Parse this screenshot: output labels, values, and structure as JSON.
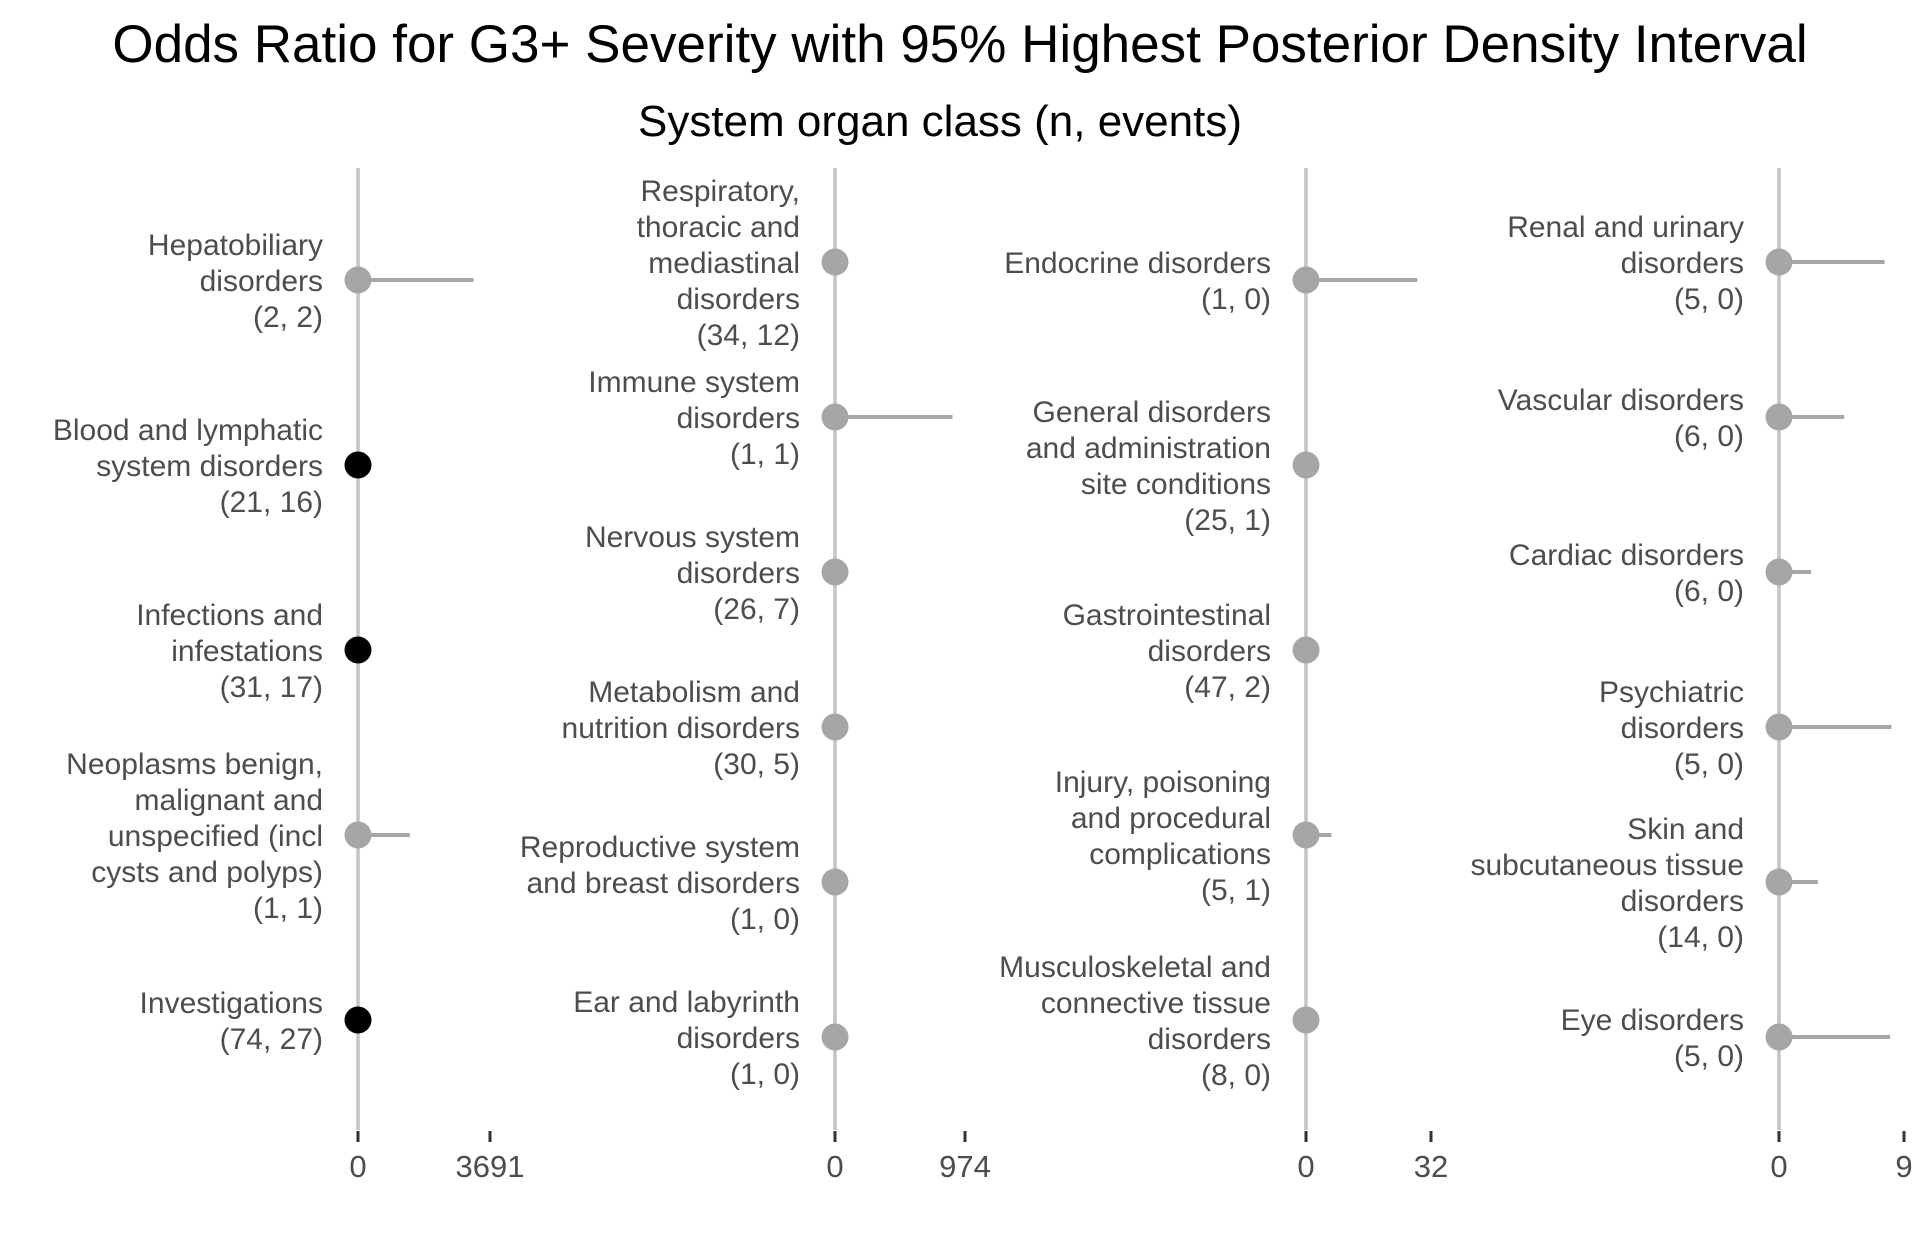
{
  "chart_data": {
    "type": "scatter",
    "title": "Odds Ratio for G3+ Severity with 95% Highest Posterior Density Interval",
    "subtitle": "System organ class (n, events)",
    "colors": {
      "highlight": "#000000",
      "normal": "#a6a6a6",
      "ref_line": "#c4c4c4",
      "label": "#4d4d4d"
    },
    "grid": false,
    "panels": [
      {
        "xlim": [
          0,
          3691
        ],
        "ticks": [
          "0",
          "3691"
        ],
        "items": [
          {
            "label": [
              "Hepatobiliary",
              "disorders",
              "(2, 2)"
            ],
            "or": 0,
            "upper": 3230,
            "highlight": false
          },
          {
            "label": [
              "Blood and lymphatic",
              "system disorders",
              "(21, 16)"
            ],
            "or": 0,
            "upper": 0,
            "highlight": true
          },
          {
            "label": [
              "Infections and",
              "infestations",
              "(31, 17)"
            ],
            "or": 0,
            "upper": 0,
            "highlight": true
          },
          {
            "label": [
              "Neoplasms benign,",
              "malignant and",
              "unspecified (incl",
              "cysts and polyps)",
              "(1, 1)"
            ],
            "or": 0,
            "upper": 1450,
            "highlight": false
          },
          {
            "label": [
              "Investigations",
              "(74, 27)"
            ],
            "or": 0,
            "upper": 0,
            "highlight": true
          }
        ]
      },
      {
        "xlim": [
          0,
          974
        ],
        "ticks": [
          "0",
          "974"
        ],
        "items": [
          {
            "label": [
              "Respiratory,",
              "thoracic and",
              "mediastinal",
              "disorders",
              "(34, 12)"
            ],
            "or": 0,
            "upper": 0,
            "highlight": false
          },
          {
            "label": [
              "Immune system",
              "disorders",
              "(1, 1)"
            ],
            "or": 0,
            "upper": 880,
            "highlight": false
          },
          {
            "label": [
              "Nervous system",
              "disorders",
              "(26, 7)"
            ],
            "or": 0,
            "upper": 0,
            "highlight": false
          },
          {
            "label": [
              "Metabolism and",
              "nutrition disorders",
              "(30, 5)"
            ],
            "or": 0,
            "upper": 0,
            "highlight": false
          },
          {
            "label": [
              "Reproductive system",
              "and breast disorders",
              "(1, 0)"
            ],
            "or": 0,
            "upper": 0,
            "highlight": false
          },
          {
            "label": [
              "Ear and labyrinth",
              "disorders",
              "(1, 0)"
            ],
            "or": 0,
            "upper": 0,
            "highlight": false
          }
        ]
      },
      {
        "xlim": [
          0,
          32
        ],
        "ticks": [
          "0",
          "32"
        ],
        "items": [
          {
            "label": [
              "Endocrine disorders",
              "(1, 0)"
            ],
            "or": 0,
            "upper": 28.5,
            "highlight": false
          },
          {
            "label": [
              "General disorders",
              "and administration",
              "site conditions",
              "(25, 1)"
            ],
            "or": 0,
            "upper": 0,
            "highlight": false
          },
          {
            "label": [
              "Gastrointestinal",
              "disorders",
              "(47, 2)"
            ],
            "or": 0,
            "upper": 0,
            "highlight": false
          },
          {
            "label": [
              "Injury, poisoning",
              "and procedural",
              "complications",
              "(5, 1)"
            ],
            "or": 0,
            "upper": 6.5,
            "highlight": false
          },
          {
            "label": [
              "Musculoskeletal and",
              "connective tissue",
              "disorders",
              "(8, 0)"
            ],
            "or": 0,
            "upper": 0,
            "highlight": false
          }
        ]
      },
      {
        "xlim": [
          0,
          9
        ],
        "ticks": [
          "0",
          "9"
        ],
        "items": [
          {
            "label": [
              "Renal and urinary",
              "disorders",
              "(5, 0)"
            ],
            "or": 0,
            "upper": 7.6,
            "highlight": false
          },
          {
            "label": [
              "Vascular disorders",
              "(6, 0)"
            ],
            "or": 0,
            "upper": 4.7,
            "highlight": false
          },
          {
            "label": [
              "Cardiac disorders",
              "(6, 0)"
            ],
            "or": 0,
            "upper": 2.3,
            "highlight": false
          },
          {
            "label": [
              "Psychiatric",
              "disorders",
              "(5, 0)"
            ],
            "or": 0,
            "upper": 8.1,
            "highlight": false
          },
          {
            "label": [
              "Skin and",
              "subcutaneous tissue",
              "disorders",
              "(14, 0)"
            ],
            "or": 0,
            "upper": 2.8,
            "highlight": false
          },
          {
            "label": [
              "Eye disorders",
              "(5, 0)"
            ],
            "or": 0,
            "upper": 8.0,
            "highlight": false
          }
        ]
      }
    ]
  }
}
